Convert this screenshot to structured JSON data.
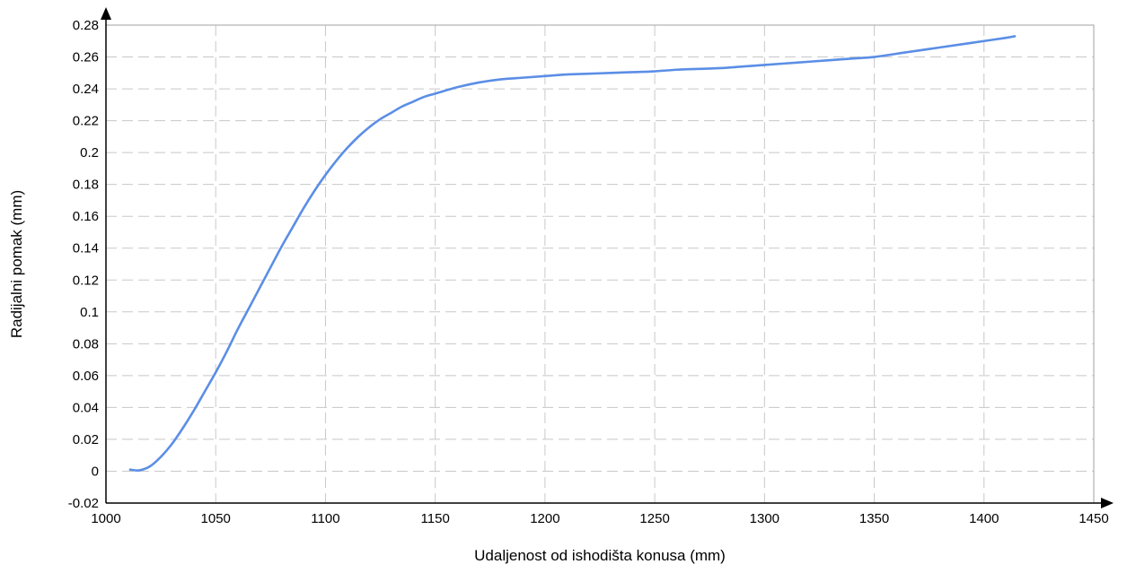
{
  "chart_data": {
    "type": "line",
    "title": "",
    "xlabel": "Udaljenost od ishodišta konusa (mm)",
    "ylabel": "Radijalni pomak (mm)",
    "xlim": [
      1000,
      1450
    ],
    "ylim": [
      -0.02,
      0.28
    ],
    "x_ticks": [
      "1000",
      "1050",
      "1100",
      "1150",
      "1200",
      "1250",
      "1300",
      "1350",
      "1400",
      "1450"
    ],
    "y_ticks": [
      "-0.02",
      "0",
      "0.02",
      "0.04",
      "0.06",
      "0.08",
      "0.1",
      "0.12",
      "0.14",
      "0.16",
      "0.18",
      "0.2",
      "0.22",
      "0.24",
      "0.26",
      "0.28"
    ],
    "grid": true,
    "line_color": "#5b8ee6",
    "series": [
      {
        "x": [
          1011,
          1015,
          1020,
          1025,
          1030,
          1035,
          1040,
          1045,
          1050,
          1055,
          1060,
          1065,
          1070,
          1075,
          1080,
          1085,
          1090,
          1095,
          1100,
          1105,
          1110,
          1115,
          1120,
          1125,
          1130,
          1135,
          1140,
          1145,
          1150,
          1160,
          1170,
          1180,
          1190,
          1200,
          1210,
          1220,
          1230,
          1240,
          1250,
          1260,
          1270,
          1280,
          1290,
          1300,
          1310,
          1320,
          1330,
          1340,
          1350,
          1360,
          1370,
          1380,
          1390,
          1400,
          1410,
          1414
        ],
        "y": [
          0.001,
          0.0005,
          0.003,
          0.009,
          0.017,
          0.027,
          0.038,
          0.05,
          0.062,
          0.075,
          0.089,
          0.102,
          0.115,
          0.128,
          0.141,
          0.153,
          0.165,
          0.176,
          0.186,
          0.195,
          0.203,
          0.21,
          0.216,
          0.221,
          0.225,
          0.229,
          0.232,
          0.235,
          0.237,
          0.241,
          0.244,
          0.246,
          0.247,
          0.248,
          0.249,
          0.2495,
          0.25,
          0.2505,
          0.251,
          0.252,
          0.2525,
          0.253,
          0.254,
          0.255,
          0.256,
          0.257,
          0.258,
          0.259,
          0.26,
          0.262,
          0.264,
          0.266,
          0.268,
          0.27,
          0.272,
          0.273
        ]
      }
    ]
  }
}
